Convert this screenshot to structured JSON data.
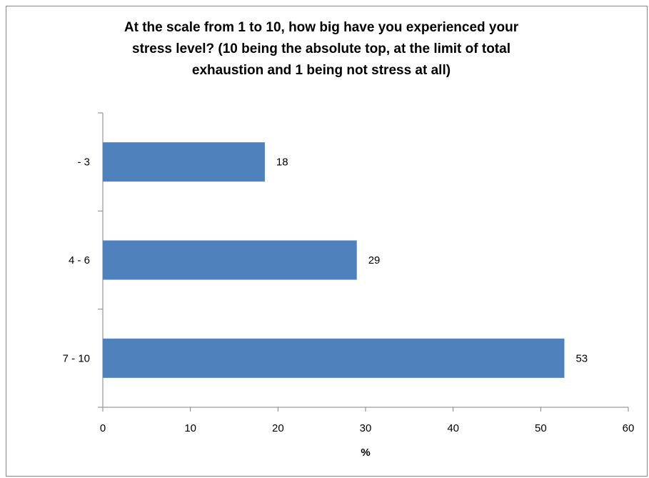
{
  "chart_data": {
    "type": "bar",
    "orientation": "horizontal",
    "title_lines": [
      "At the scale from 1 to 10, how big have you experienced your",
      "stress level? (10 being the absolute top, at the limit of total",
      "exhaustion and 1 being not stress at all)"
    ],
    "categories": [
      "- 3",
      "4 - 6",
      "7 - 10"
    ],
    "values": [
      18.5,
      29,
      52.7
    ],
    "data_labels": [
      "18",
      "29",
      "53"
    ],
    "xlabel": "%",
    "ylabel": "",
    "xlim": [
      0,
      60
    ],
    "xticks": [
      "0",
      "10",
      "20",
      "30",
      "40",
      "50",
      "60"
    ],
    "grid": false,
    "legend": "none",
    "bar_color": "#4f81bd"
  }
}
